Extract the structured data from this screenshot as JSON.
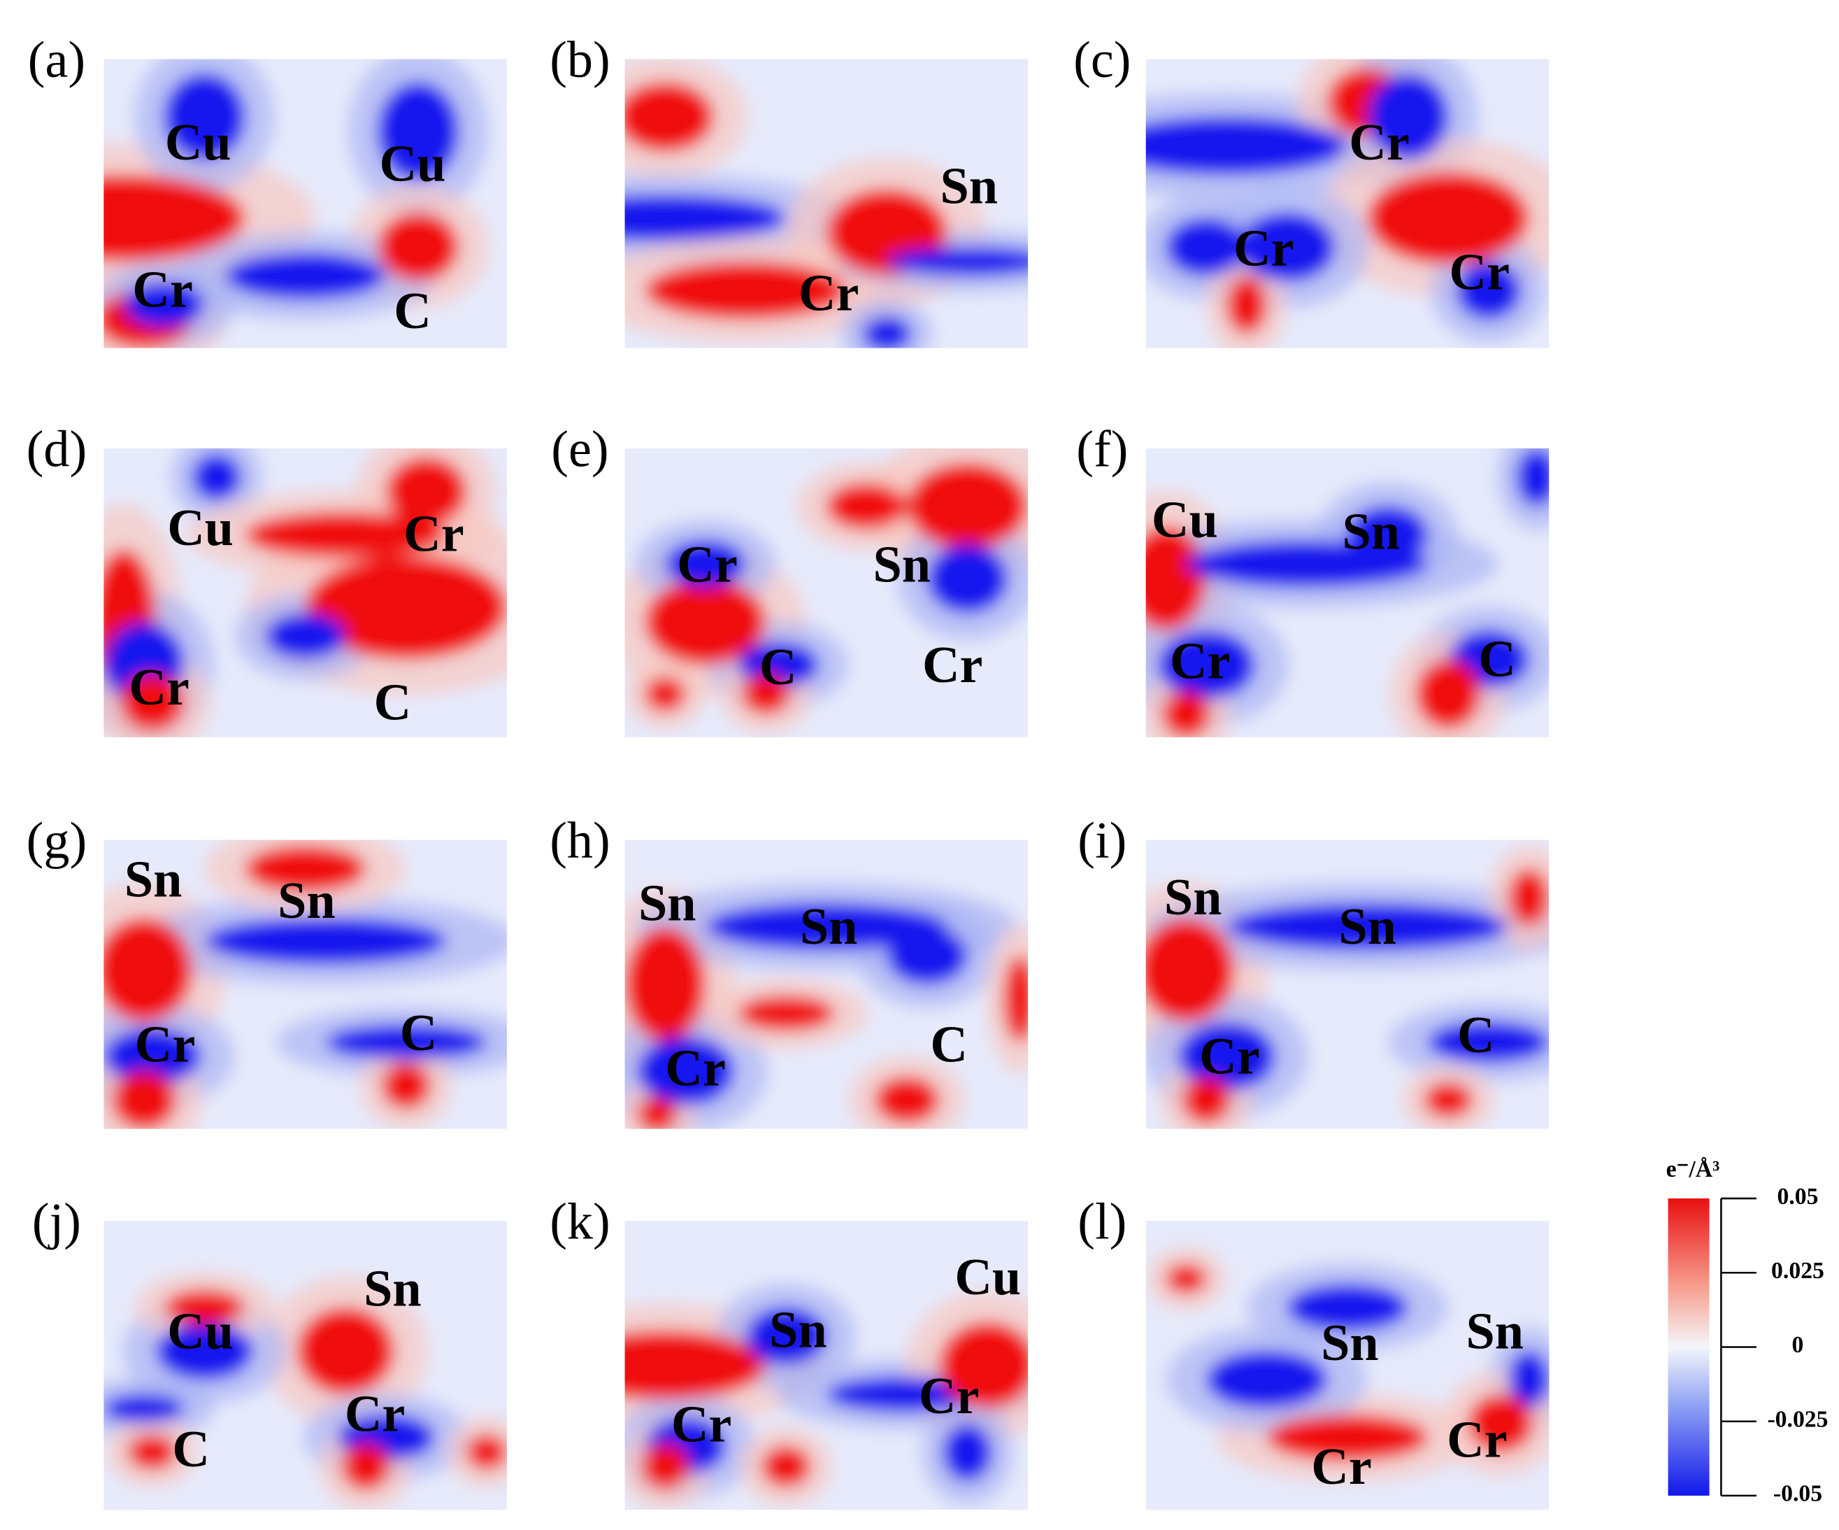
{
  "panels": [
    {
      "label": "(a)",
      "atoms": [
        "Cu",
        "Cu",
        "Cr",
        "C"
      ]
    },
    {
      "label": "(b)",
      "atoms": [
        "Sn",
        "Cr"
      ]
    },
    {
      "label": "(c)",
      "atoms": [
        "Cr",
        "Cr",
        "Cr"
      ]
    },
    {
      "label": "(d)",
      "atoms": [
        "Cu",
        "Cr",
        "Cr",
        "C"
      ]
    },
    {
      "label": "(e)",
      "atoms": [
        "Cr",
        "Sn",
        "C",
        "Cr"
      ]
    },
    {
      "label": "(f)",
      "atoms": [
        "Cu",
        "Sn",
        "Cr",
        "C"
      ]
    },
    {
      "label": "(g)",
      "atoms": [
        "Sn",
        "Sn",
        "Cr",
        "C"
      ]
    },
    {
      "label": "(h)",
      "atoms": [
        "Sn",
        "Sn",
        "Cr",
        "C"
      ]
    },
    {
      "label": "(i)",
      "atoms": [
        "Sn",
        "Sn",
        "Cr",
        "C"
      ]
    },
    {
      "label": "(j)",
      "atoms": [
        "Sn",
        "Cu",
        "Cr",
        "C"
      ]
    },
    {
      "label": "(k)",
      "atoms": [
        "Cu",
        "Sn",
        "Cr",
        "Cr"
      ]
    },
    {
      "label": "(l)",
      "atoms": [
        "Sn",
        "Sn",
        "Cr",
        "Cr"
      ]
    }
  ],
  "colorbar": {
    "title": "e⁻/Å³",
    "range": [
      -0.05,
      0.05
    ],
    "ticks": [
      0.05,
      0.025,
      0,
      -0.025,
      -0.05
    ]
  }
}
